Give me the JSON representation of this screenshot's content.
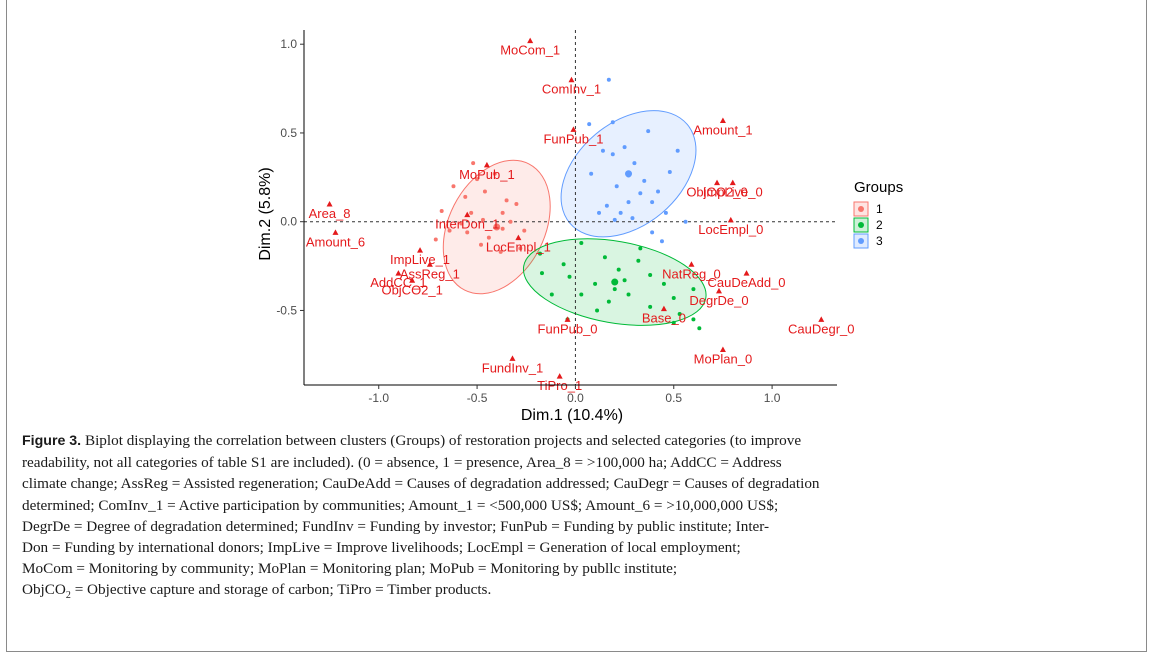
{
  "chart_data": {
    "type": "scatter",
    "xlabel": "Dim.1 (10.4%)",
    "ylabel": "Dim.2 (5.8%)",
    "xlim": [
      -1.38,
      1.33
    ],
    "ylim": [
      -0.92,
      1.08
    ],
    "x_ticks": [
      -1.0,
      -0.5,
      0.0,
      0.5,
      1.0
    ],
    "x_tick_labels": [
      "-1.0",
      "-0.5",
      "0.0",
      "0.5",
      "1.0"
    ],
    "y_ticks": [
      -0.5,
      0.0,
      0.5,
      1.0
    ],
    "y_tick_labels": [
      "-0.5",
      "0.0",
      "0.5",
      "1.0"
    ],
    "grid": false,
    "reference_lines": {
      "x": 0,
      "y": 0
    },
    "legend": {
      "title": "Groups",
      "position": "right",
      "entries": [
        "1",
        "2",
        "3"
      ]
    },
    "groups": [
      {
        "name": "1",
        "color": "#f8766d",
        "ellipse": {
          "cx": -0.4,
          "cy": -0.03,
          "rx": 0.36,
          "ry": 0.27,
          "angle_deg": -63
        },
        "points": [
          [
            -0.52,
            0.33
          ],
          [
            -0.46,
            0.17
          ],
          [
            -0.62,
            0.2
          ],
          [
            -0.37,
            0.05
          ],
          [
            -0.53,
            0.05
          ],
          [
            -0.47,
            0.01
          ],
          [
            -0.58,
            -0.01
          ],
          [
            -0.68,
            0.06
          ],
          [
            -0.37,
            -0.04
          ],
          [
            -0.26,
            -0.05
          ],
          [
            -0.44,
            -0.09
          ],
          [
            -0.55,
            -0.06
          ],
          [
            -0.71,
            -0.1
          ],
          [
            -0.33,
            0.0
          ],
          [
            -0.41,
            0.27
          ],
          [
            -0.56,
            0.14
          ],
          [
            -0.3,
            0.1
          ],
          [
            -0.64,
            -0.05
          ],
          [
            -0.48,
            -0.13
          ],
          [
            -0.38,
            -0.17
          ],
          [
            -0.28,
            -0.15
          ],
          [
            -0.35,
            0.12
          ],
          [
            -0.5,
            0.24
          ]
        ]
      },
      {
        "name": "2",
        "color": "#00ba38",
        "ellipse": {
          "cx": 0.2,
          "cy": -0.34,
          "rx": 0.47,
          "ry": 0.23,
          "angle_deg": 10
        },
        "points": [
          [
            0.03,
            -0.12
          ],
          [
            -0.18,
            -0.18
          ],
          [
            0.15,
            -0.2
          ],
          [
            0.32,
            -0.22
          ],
          [
            -0.06,
            -0.24
          ],
          [
            0.22,
            -0.27
          ],
          [
            -0.03,
            -0.31
          ],
          [
            0.1,
            -0.35
          ],
          [
            0.2,
            -0.38
          ],
          [
            0.27,
            -0.41
          ],
          [
            0.17,
            -0.45
          ],
          [
            -0.12,
            -0.41
          ],
          [
            0.5,
            -0.43
          ],
          [
            0.38,
            -0.48
          ],
          [
            0.53,
            -0.52
          ],
          [
            0.6,
            -0.55
          ],
          [
            0.5,
            -0.57
          ],
          [
            0.63,
            -0.6
          ],
          [
            -0.04,
            -0.55
          ],
          [
            0.11,
            -0.5
          ],
          [
            0.38,
            -0.3
          ],
          [
            0.45,
            -0.35
          ],
          [
            0.25,
            -0.33
          ],
          [
            0.6,
            -0.38
          ],
          [
            -0.17,
            -0.29
          ],
          [
            0.33,
            -0.15
          ],
          [
            0.03,
            -0.41
          ]
        ]
      },
      {
        "name": "3",
        "color": "#619cff",
        "ellipse": {
          "cx": 0.27,
          "cy": 0.27,
          "rx": 0.39,
          "ry": 0.29,
          "angle_deg": -40
        },
        "points": [
          [
            0.17,
            0.8
          ],
          [
            0.07,
            0.55
          ],
          [
            0.19,
            0.56
          ],
          [
            0.37,
            0.51
          ],
          [
            0.25,
            0.42
          ],
          [
            0.14,
            0.4
          ],
          [
            0.19,
            0.38
          ],
          [
            0.3,
            0.33
          ],
          [
            0.27,
            0.26
          ],
          [
            0.21,
            0.2
          ],
          [
            0.35,
            0.23
          ],
          [
            0.16,
            0.09
          ],
          [
            0.27,
            0.11
          ],
          [
            0.39,
            0.11
          ],
          [
            0.46,
            0.05
          ],
          [
            0.12,
            0.05
          ],
          [
            0.2,
            0.01
          ],
          [
            0.33,
            0.16
          ],
          [
            0.48,
            0.28
          ],
          [
            0.08,
            0.27
          ],
          [
            0.23,
            0.05
          ],
          [
            0.42,
            0.17
          ],
          [
            0.52,
            0.4
          ],
          [
            0.56,
            0.0
          ],
          [
            0.39,
            -0.06
          ],
          [
            0.44,
            -0.11
          ],
          [
            0.29,
            0.02
          ]
        ]
      }
    ],
    "categories": [
      {
        "label": "MoCom_1",
        "x": -0.23,
        "y": 1.02
      },
      {
        "label": "ComInv_1",
        "x": -0.02,
        "y": 0.8
      },
      {
        "label": "Amount_1",
        "x": 0.75,
        "y": 0.57
      },
      {
        "label": "FunPub_1",
        "x": -0.01,
        "y": 0.52
      },
      {
        "label": "MoPub_1",
        "x": -0.45,
        "y": 0.32
      },
      {
        "label": "ObjCO2_0",
        "x": 0.72,
        "y": 0.22
      },
      {
        "label": "ImpLive_0",
        "x": 0.8,
        "y": 0.22
      },
      {
        "label": "Area_8",
        "x": -1.25,
        "y": 0.1
      },
      {
        "label": "InterDon_1",
        "x": -0.55,
        "y": 0.04
      },
      {
        "label": "LocEmpl_0",
        "x": 0.79,
        "y": 0.01
      },
      {
        "label": "Amount_6",
        "x": -1.22,
        "y": -0.06
      },
      {
        "label": "LocEmpl_1",
        "x": -0.29,
        "y": -0.09
      },
      {
        "label": "ImpLive_1",
        "x": -0.79,
        "y": -0.16
      },
      {
        "label": "NatReg_0",
        "x": 0.59,
        "y": -0.24
      },
      {
        "label": "AssReg_1",
        "x": -0.74,
        "y": -0.24
      },
      {
        "label": "AddCC_1",
        "x": -0.9,
        "y": -0.29
      },
      {
        "label": "CauDeAdd_0",
        "x": 0.87,
        "y": -0.29
      },
      {
        "label": "ObjCO2_1",
        "x": -0.83,
        "y": -0.33
      },
      {
        "label": "DegrDe_0",
        "x": 0.73,
        "y": -0.39
      },
      {
        "label": "CauDegr_0",
        "x": 1.25,
        "y": -0.55
      },
      {
        "label": "Base_0",
        "x": 0.45,
        "y": -0.49
      },
      {
        "label": "FunPub_0",
        "x": -0.04,
        "y": -0.55
      },
      {
        "label": "MoPlan_0",
        "x": 0.75,
        "y": -0.72
      },
      {
        "label": "FundInv_1",
        "x": -0.32,
        "y": -0.77
      },
      {
        "label": "TiPro_1",
        "x": -0.08,
        "y": -0.87
      }
    ]
  },
  "caption": {
    "label": "Figure 3.",
    "line1": " Biplot displaying the correlation between clusters (Groups) of restoration projects and selected categories (to improve",
    "line2": "readability, not all categories of table S1 are included). (0 = absence, 1 = presence, Area_8 = >100,000 ha; AddCC = Address",
    "line3": "climate change; AssReg = Assisted regeneration; CauDeAdd = Causes of degradation addressed; CauDegr = Causes of degradation",
    "line4": "determined; ComInv_1 = Active participation by communities; Amount_1 = <500,000 US$; Amount_6 = >10,000,000 US$;",
    "line5": "DegrDe = Degree of degradation determined; FundInv = Funding by investor; FunPub = Funding by public institute; Inter-",
    "line6": "Don = Funding by international donors; ImpLive = Improve livelihoods; LocEmpl = Generation of local employment;",
    "line7": "MoCom = Monitoring by community; MoPlan = Monitoring plan; MoPub = Monitoring by publlc institute;",
    "line8a": "ObjCO",
    "line8sub": "2",
    "line8b": " = Objective capture and storage of carbon; TiPro = Timber products."
  }
}
